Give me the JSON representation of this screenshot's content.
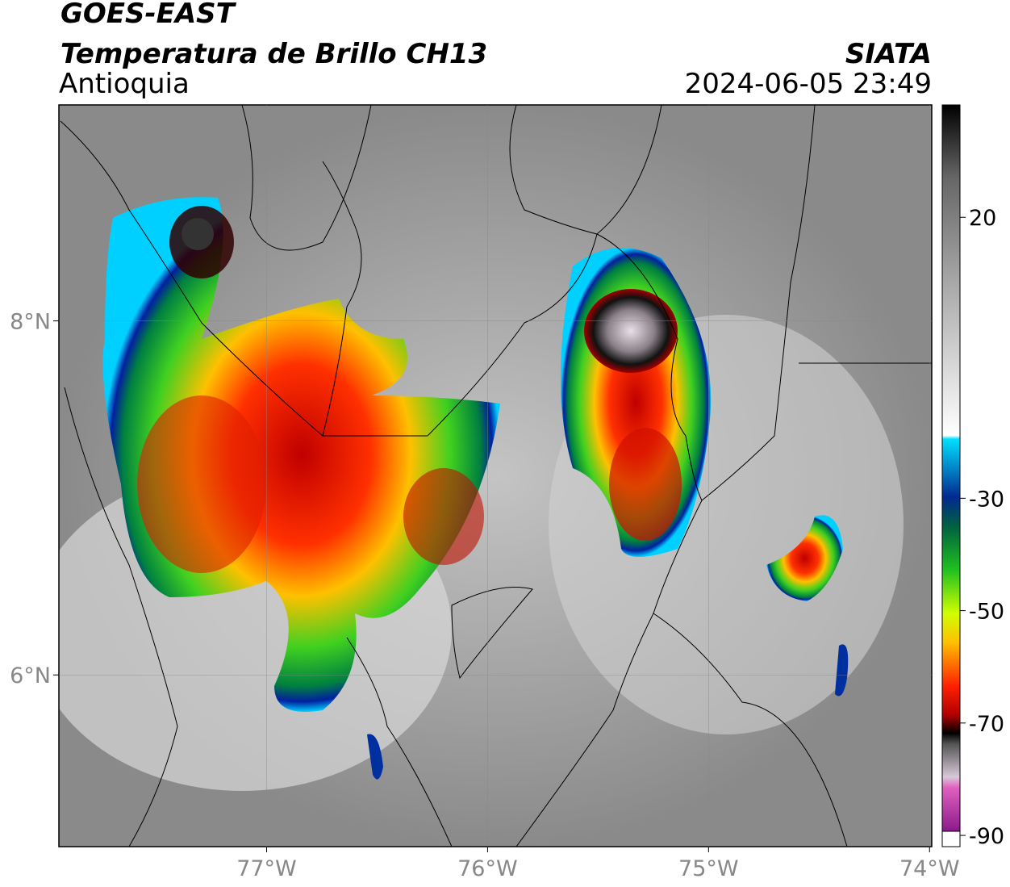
{
  "header": {
    "title": "GOES-EAST",
    "subtitle": "Temperatura de Brillo CH13",
    "region": "Antioquia",
    "source": "SIATA",
    "datetime": "2024-06-05 23:49"
  },
  "map": {
    "xlim": [
      -77.94,
      -73.99
    ],
    "ylim": [
      5.03,
      9.22
    ],
    "xticks": [
      {
        "value": -77,
        "label": "77°W"
      },
      {
        "value": -76,
        "label": "76°W"
      },
      {
        "value": -75,
        "label": "75°W"
      },
      {
        "value": -74,
        "label": "74°W"
      }
    ],
    "yticks": [
      {
        "value": 8,
        "label": "8°N"
      },
      {
        "value": 6,
        "label": "6°N"
      }
    ],
    "grid": true
  },
  "colorbar": {
    "lim": [
      -92,
      40
    ],
    "ticks": [
      20,
      -30,
      -50,
      -70,
      -90
    ]
  }
}
